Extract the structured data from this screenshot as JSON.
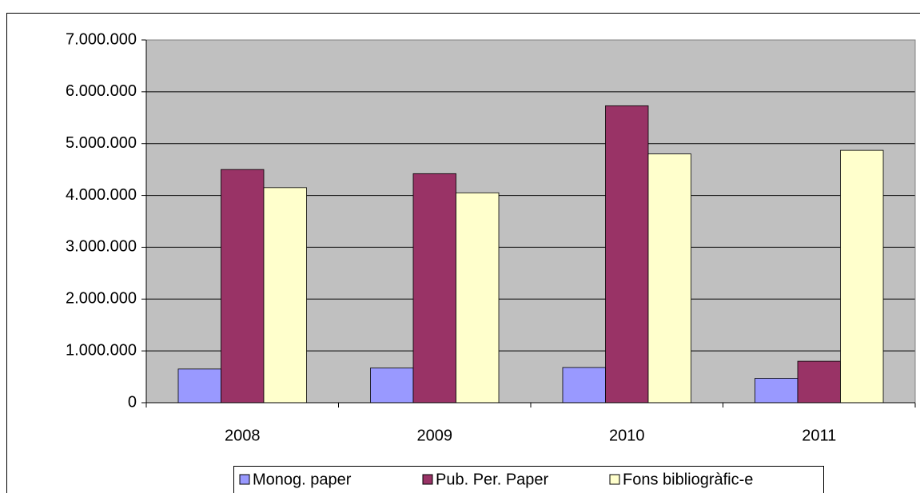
{
  "chart_data": {
    "type": "bar",
    "categories": [
      "2008",
      "2009",
      "2010",
      "2011"
    ],
    "series": [
      {
        "name": "Monog. paper",
        "color": "#9999ff",
        "values": [
          650000,
          670000,
          680000,
          470000
        ]
      },
      {
        "name": "Pub. Per. Paper",
        "color": "#993366",
        "values": [
          4500000,
          4420000,
          5730000,
          800000
        ]
      },
      {
        "name": "Fons bibliogràfic-e",
        "color": "#ffffcc",
        "values": [
          4150000,
          4050000,
          4800000,
          4870000
        ]
      }
    ],
    "ylim": [
      0,
      7000000
    ],
    "yticks": [
      0,
      {
        "value": 1000000,
        "label": "1.000.000"
      },
      {
        "value": 2000000,
        "label": "2.000.000"
      },
      {
        "value": 3000000,
        "label": "3.000.000"
      },
      {
        "value": 4000000,
        "label": "4.000.000"
      },
      {
        "value": 5000000,
        "label": "5.000.000"
      },
      {
        "value": 6000000,
        "label": "6.000.000"
      },
      {
        "value": 7000000,
        "label": "7.000.000"
      }
    ],
    "grid": true,
    "legend": "bottom"
  }
}
